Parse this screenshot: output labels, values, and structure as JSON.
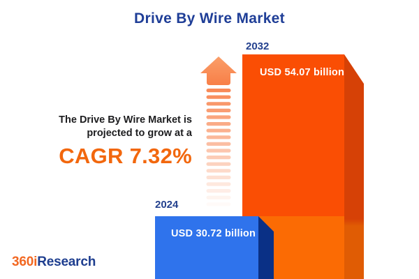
{
  "title": "Drive By Wire Market",
  "annotation": {
    "line1": "The Drive By Wire Market is",
    "line2": "projected to grow at a",
    "cagr": "CAGR 7.32%"
  },
  "bars": {
    "b2032": {
      "year": "2032",
      "value_label": "USD 54.07 billion"
    },
    "b2024": {
      "year": "2024",
      "value_label": "USD 30.72 billion"
    }
  },
  "logo": {
    "part1": "360i",
    "part2": "Research"
  },
  "chart_data": {
    "type": "bar",
    "title": "Drive By Wire Market",
    "categories": [
      "2024",
      "2032"
    ],
    "values": [
      30.72,
      54.07
    ],
    "unit": "USD billion",
    "value_labels": [
      "USD 30.72 billion",
      "USD 54.07 billion"
    ],
    "cagr_percent": 7.32,
    "annotation_text": "The Drive By Wire Market is projected to grow at a CAGR 7.32%",
    "legend": false,
    "grid": false,
    "orientation": "vertical-3d",
    "series_colors": {
      "2024": "#2F73EC",
      "2032": "#FA4E04"
    }
  },
  "colors": {
    "title_blue": "#1F3E97",
    "accent_orange": "#F2670D",
    "year_label_blue": "#24418E",
    "bar_2024_face": "#2F73EC",
    "bar_2024_side": "#0A3086",
    "bar_2032_face_top": "#FA4E04",
    "bar_2032_face_bottom": "#FB6B04",
    "bar_2032_side_top": "#D64106",
    "bar_2032_side_bottom": "#E05C04",
    "arrow_orange": "#F8834E",
    "logo_orange": "#F26822",
    "logo_blue": "#1E3E8F"
  }
}
